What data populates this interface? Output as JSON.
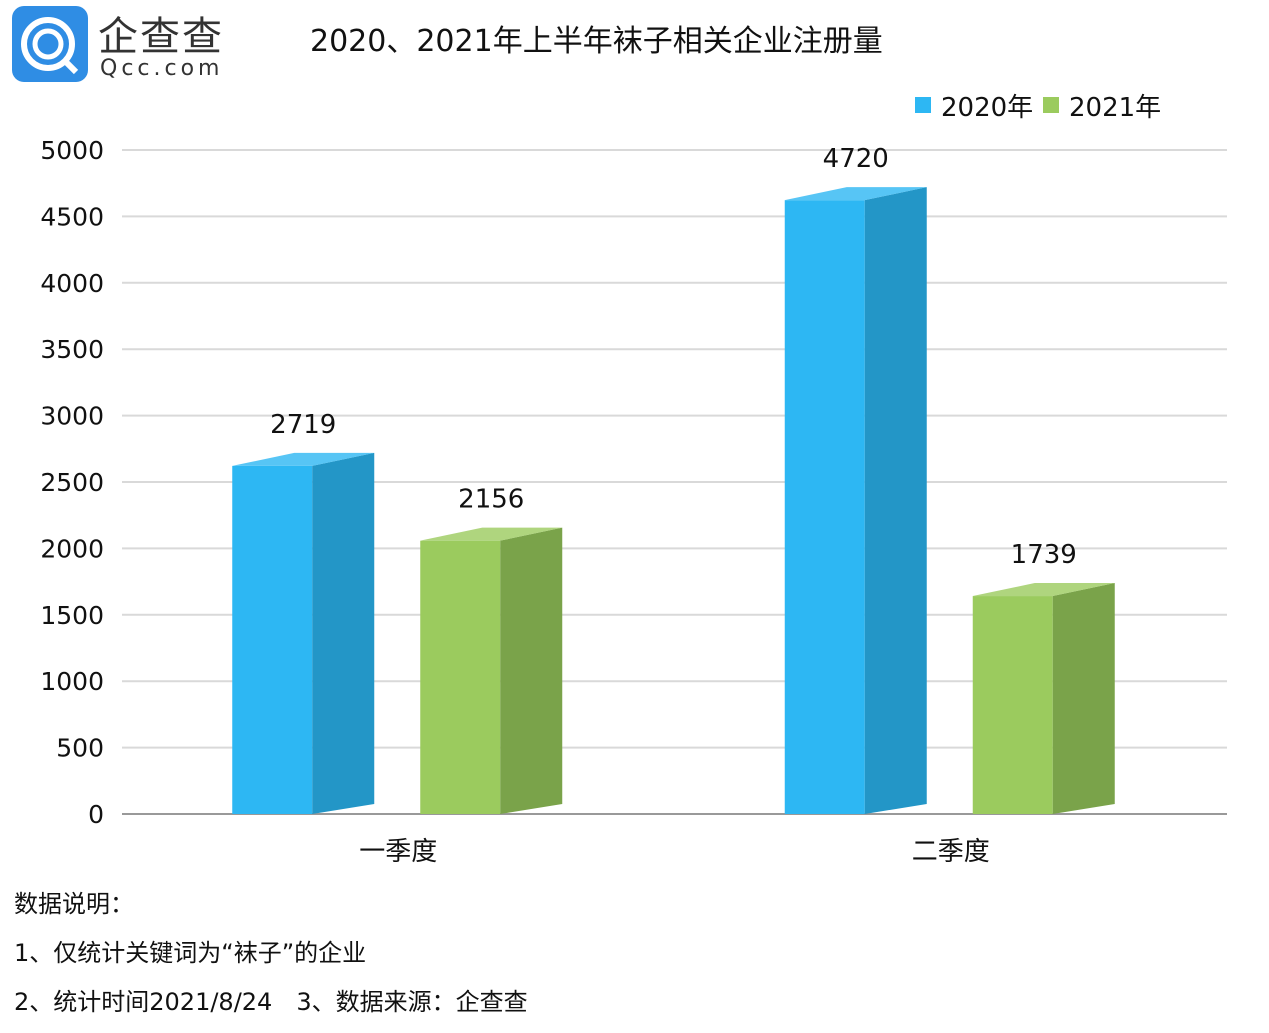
{
  "logo": {
    "name": "企查查",
    "domain": "Qcc.com"
  },
  "chart_data": {
    "type": "bar",
    "title": "2020、2021年上半年袜子相关企业注册量",
    "categories": [
      "一季度",
      "二季度"
    ],
    "series": [
      {
        "name": "2020年",
        "values": [
          2719,
          4720
        ],
        "color": "#2db7f3",
        "side": "#2396c7"
      },
      {
        "name": "2021年",
        "values": [
          2156,
          1739
        ],
        "color": "#9bcb5e",
        "side": "#7aa34a"
      }
    ],
    "ylim": [
      0,
      5000
    ],
    "yticks": [
      0,
      500,
      1000,
      1500,
      2000,
      2500,
      3000,
      3500,
      4000,
      4500,
      5000
    ],
    "grid": true,
    "legend": "top-right"
  },
  "notes": [
    "数据说明：",
    "1、仅统计关键词为“袜子”的企业",
    "2、统计时间2021/8/24　3、数据来源：企查查"
  ]
}
